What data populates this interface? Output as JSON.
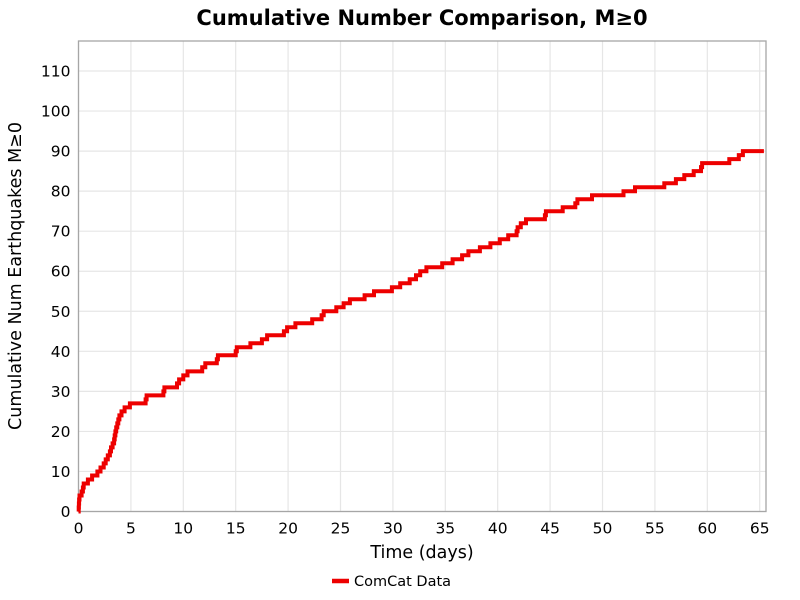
{
  "chart_data": {
    "type": "line",
    "subtype": "step-post",
    "title": "Cumulative Number Comparison, M≥0",
    "xlabel": "Time (days)",
    "ylabel": "Cumulative Num Earthquakes M≥0",
    "xticks": [
      0,
      5,
      10,
      15,
      20,
      25,
      30,
      35,
      40,
      45,
      50,
      55,
      60,
      65
    ],
    "yticks": [
      0,
      10,
      20,
      30,
      40,
      50,
      60,
      70,
      80,
      90,
      100,
      110
    ],
    "xlim": [
      0,
      65.6
    ],
    "ylim": [
      0,
      117.5
    ],
    "grid": true,
    "legend": {
      "position": "bottom-center",
      "entries": [
        {
          "label": "ComCat Data",
          "color": "#ed0000"
        }
      ]
    },
    "series": [
      {
        "name": "ComCat Data",
        "color": "#ed0000",
        "line_width": 4,
        "step_points": [
          [
            0,
            0
          ],
          [
            0.02,
            1
          ],
          [
            0.04,
            2
          ],
          [
            0.06,
            3
          ],
          [
            0.1,
            4
          ],
          [
            0.3,
            5
          ],
          [
            0.42,
            6
          ],
          [
            0.5,
            7
          ],
          [
            0.9,
            8
          ],
          [
            1.3,
            9
          ],
          [
            1.8,
            10
          ],
          [
            2.1,
            11
          ],
          [
            2.4,
            12
          ],
          [
            2.6,
            13
          ],
          [
            2.8,
            14
          ],
          [
            3.0,
            15
          ],
          [
            3.1,
            16
          ],
          [
            3.25,
            17
          ],
          [
            3.4,
            18
          ],
          [
            3.45,
            19
          ],
          [
            3.52,
            20
          ],
          [
            3.6,
            21
          ],
          [
            3.7,
            22
          ],
          [
            3.8,
            23
          ],
          [
            3.9,
            24
          ],
          [
            4.1,
            25
          ],
          [
            4.4,
            26
          ],
          [
            4.9,
            27
          ],
          [
            6.4,
            28
          ],
          [
            6.5,
            29
          ],
          [
            8.1,
            30
          ],
          [
            8.2,
            31
          ],
          [
            9.4,
            32
          ],
          [
            9.6,
            33
          ],
          [
            10.0,
            34
          ],
          [
            10.4,
            35
          ],
          [
            11.8,
            36
          ],
          [
            12.1,
            37
          ],
          [
            13.2,
            38
          ],
          [
            13.3,
            39
          ],
          [
            15.0,
            40
          ],
          [
            15.1,
            41
          ],
          [
            16.4,
            42
          ],
          [
            17.5,
            43
          ],
          [
            18.0,
            44
          ],
          [
            19.6,
            45
          ],
          [
            19.9,
            46
          ],
          [
            20.7,
            47
          ],
          [
            22.3,
            48
          ],
          [
            23.2,
            49
          ],
          [
            23.4,
            50
          ],
          [
            24.6,
            51
          ],
          [
            25.3,
            52
          ],
          [
            25.9,
            53
          ],
          [
            27.3,
            54
          ],
          [
            28.2,
            55
          ],
          [
            29.9,
            56
          ],
          [
            30.7,
            57
          ],
          [
            31.6,
            58
          ],
          [
            32.2,
            59
          ],
          [
            32.6,
            60
          ],
          [
            33.2,
            61
          ],
          [
            34.7,
            62
          ],
          [
            35.7,
            63
          ],
          [
            36.6,
            64
          ],
          [
            37.2,
            65
          ],
          [
            38.3,
            66
          ],
          [
            39.3,
            67
          ],
          [
            40.2,
            68
          ],
          [
            41.0,
            69
          ],
          [
            41.8,
            70
          ],
          [
            41.9,
            71
          ],
          [
            42.2,
            72
          ],
          [
            42.7,
            73
          ],
          [
            44.5,
            74
          ],
          [
            44.6,
            75
          ],
          [
            46.2,
            76
          ],
          [
            47.4,
            77
          ],
          [
            47.6,
            78
          ],
          [
            49.0,
            79
          ],
          [
            52.0,
            80
          ],
          [
            53.1,
            81
          ],
          [
            55.9,
            82
          ],
          [
            57.0,
            83
          ],
          [
            57.8,
            84
          ],
          [
            58.7,
            85
          ],
          [
            59.4,
            86
          ],
          [
            59.5,
            87
          ],
          [
            62.1,
            88
          ],
          [
            63.0,
            89
          ],
          [
            63.4,
            90
          ],
          [
            65.4,
            90
          ]
        ]
      }
    ]
  },
  "colors": {
    "line_red": "#ed0000",
    "grid": "#e6e6e6",
    "panel_border": "#a6a6a6",
    "text": "#000000",
    "background": "#ffffff"
  }
}
